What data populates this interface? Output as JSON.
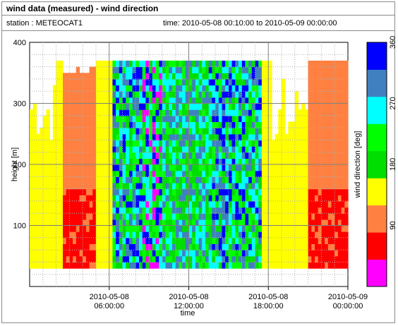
{
  "header": {
    "title": "wind data (measured) - wind direction",
    "station": "station : METEOCAT1",
    "time_range": "time: 2010-05-08 00:10:00 to 2010-05-09 00:00:00"
  },
  "chart_data": {
    "type": "heatmap",
    "xlabel": "time",
    "ylabel": "height [m]",
    "ylim": [
      0,
      400
    ],
    "xlim_hours": [
      0,
      24
    ],
    "x_ticks": [
      {
        "hour": 6,
        "line1": "2010-05-08",
        "line2": "06:00:00"
      },
      {
        "hour": 12,
        "line1": "2010-05-08",
        "line2": "12:00:00"
      },
      {
        "hour": 18,
        "line1": "2010-05-08",
        "line2": "18:00:00"
      },
      {
        "hour": 24,
        "line1": "2010-05-09",
        "line2": "00:00:00"
      }
    ],
    "y_ticks": [
      "100",
      "200",
      "300",
      "400"
    ],
    "y_tick_values": [
      100,
      200,
      300,
      400
    ],
    "colorbar": {
      "label": "wind direction [deg]",
      "tick_labels": [
        "90",
        "180",
        "270",
        "360"
      ],
      "tick_values": [
        90,
        180,
        270,
        360
      ],
      "range": [
        0,
        360
      ],
      "colors": [
        "#ff00ff",
        "#ff0000",
        "#ff8040",
        "#ffff00",
        "#00dd00",
        "#00ff00",
        "#00ffff",
        "#4080c0",
        "#0000ff"
      ]
    },
    "height_range_m": [
      30,
      365
    ],
    "band_profile": [
      {
        "h_from": 0.0,
        "h_to": 2.3,
        "class": 3
      },
      {
        "h_from": 2.3,
        "h_to": 4.8,
        "class": 2,
        "top": 360,
        "core": 1,
        "core_top": 160
      },
      {
        "h_from": 4.8,
        "h_to": 6.2,
        "class": 3
      },
      {
        "h_from": 6.2,
        "h_to": 8.5,
        "class": 7,
        "mix": [
          5,
          6,
          7,
          8,
          4
        ]
      },
      {
        "h_from": 8.5,
        "h_to": 10.0,
        "class": 5,
        "mix": [
          5,
          6,
          4,
          0,
          8
        ]
      },
      {
        "h_from": 10.0,
        "h_to": 13.5,
        "class": 5,
        "mix": [
          4,
          5,
          6,
          7
        ]
      },
      {
        "h_from": 13.5,
        "h_to": 17.5,
        "class": 6,
        "mix": [
          6,
          7,
          8,
          5,
          4
        ]
      },
      {
        "h_from": 17.5,
        "h_to": 21.0,
        "class": 3
      },
      {
        "h_from": 21.0,
        "h_to": 24.0,
        "class": 2,
        "core": 1,
        "core_top": 160
      }
    ]
  }
}
